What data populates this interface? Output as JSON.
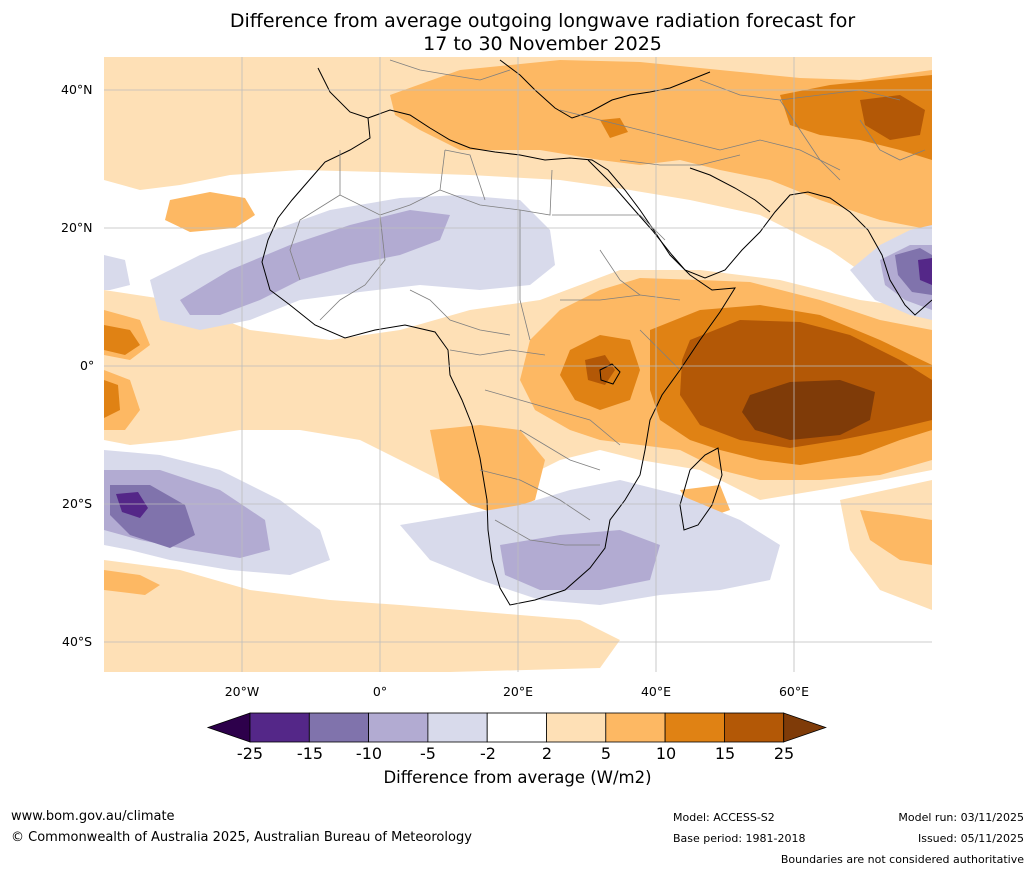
{
  "title": {
    "line1": "Difference from average outgoing longwave radiation forecast for",
    "line2": "17 to 30 November 2025"
  },
  "axes": {
    "lat_labels": [
      "40°N",
      "20°N",
      "0°",
      "20°S",
      "40°S"
    ],
    "lon_labels": [
      "20°W",
      "0°",
      "20°E",
      "40°E",
      "60°E"
    ]
  },
  "colorbar": {
    "title": "Difference from average (W/m2)",
    "ticks": [
      "-25",
      "-15",
      "-10",
      "-5",
      "-2",
      "2",
      "5",
      "10",
      "15",
      "25"
    ],
    "colors": {
      "below": "#2d004b",
      "bins": [
        "#542788",
        "#8073ac",
        "#b2abd2",
        "#d8daeb",
        "#ffffff",
        "#fee0b6",
        "#fdb863",
        "#e08214",
        "#b35806"
      ],
      "above": "#7f3b08"
    }
  },
  "footer": {
    "website": "www.bom.gov.au/climate",
    "copyright": "© Commonwealth of Australia 2025, Australian Bureau of Meteorology",
    "model": "Model: ACCESS-S2",
    "base_period": "Base period: 1981-2018",
    "model_run": "Model run: 03/11/2025",
    "issued": "Issued: 05/11/2025",
    "disclaimer": "Boundaries are not considered authoritative"
  }
}
